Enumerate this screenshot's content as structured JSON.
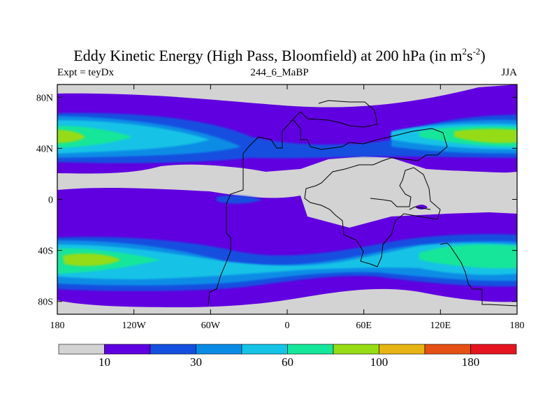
{
  "title": {
    "main": "Eddy Kinetic Energy (High Pass, Bloomfield) at 200 hPa (in m",
    "sup1": "2",
    "mid": "s",
    "sup2": "-2",
    "close": ")"
  },
  "subtitle_left": "Expt = teyDx",
  "subtitle_center": "244_6_MaBP",
  "subtitle_right": "JJA",
  "map": {
    "projection": "cylindrical equidistant",
    "lon_range": [
      -180,
      180
    ],
    "lat_range": [
      -90,
      90
    ],
    "x_ticks": [
      {
        "lon": -180,
        "label": "180"
      },
      {
        "lon": -120,
        "label": "120W"
      },
      {
        "lon": -60,
        "label": "60W"
      },
      {
        "lon": 0,
        "label": "0"
      },
      {
        "lon": 60,
        "label": "60E"
      },
      {
        "lon": 120,
        "label": "120E"
      },
      {
        "lon": 180,
        "label": "180"
      }
    ],
    "y_ticks": [
      {
        "lat": 80,
        "label": "80N"
      },
      {
        "lat": 40,
        "label": "40N"
      },
      {
        "lat": 0,
        "label": "0"
      },
      {
        "lat": -40,
        "label": "40S"
      },
      {
        "lat": -80,
        "label": "80S"
      }
    ]
  },
  "colorbar": {
    "levels": [
      10,
      20,
      30,
      40,
      60,
      80,
      100,
      120,
      150,
      180
    ],
    "colors": [
      "#d3d3d3",
      "#6000e0",
      "#1450e0",
      "#0a8ce6",
      "#14c3e6",
      "#16e69a",
      "#96dc14",
      "#e6b414",
      "#e65014",
      "#e6141e"
    ],
    "labels": [
      {
        "after_box": 1,
        "label": "10"
      },
      {
        "after_box": 3,
        "label": "30"
      },
      {
        "after_box": 5,
        "label": "60"
      },
      {
        "after_box": 7,
        "label": "100"
      },
      {
        "after_box": 9,
        "label": "180"
      }
    ]
  }
}
